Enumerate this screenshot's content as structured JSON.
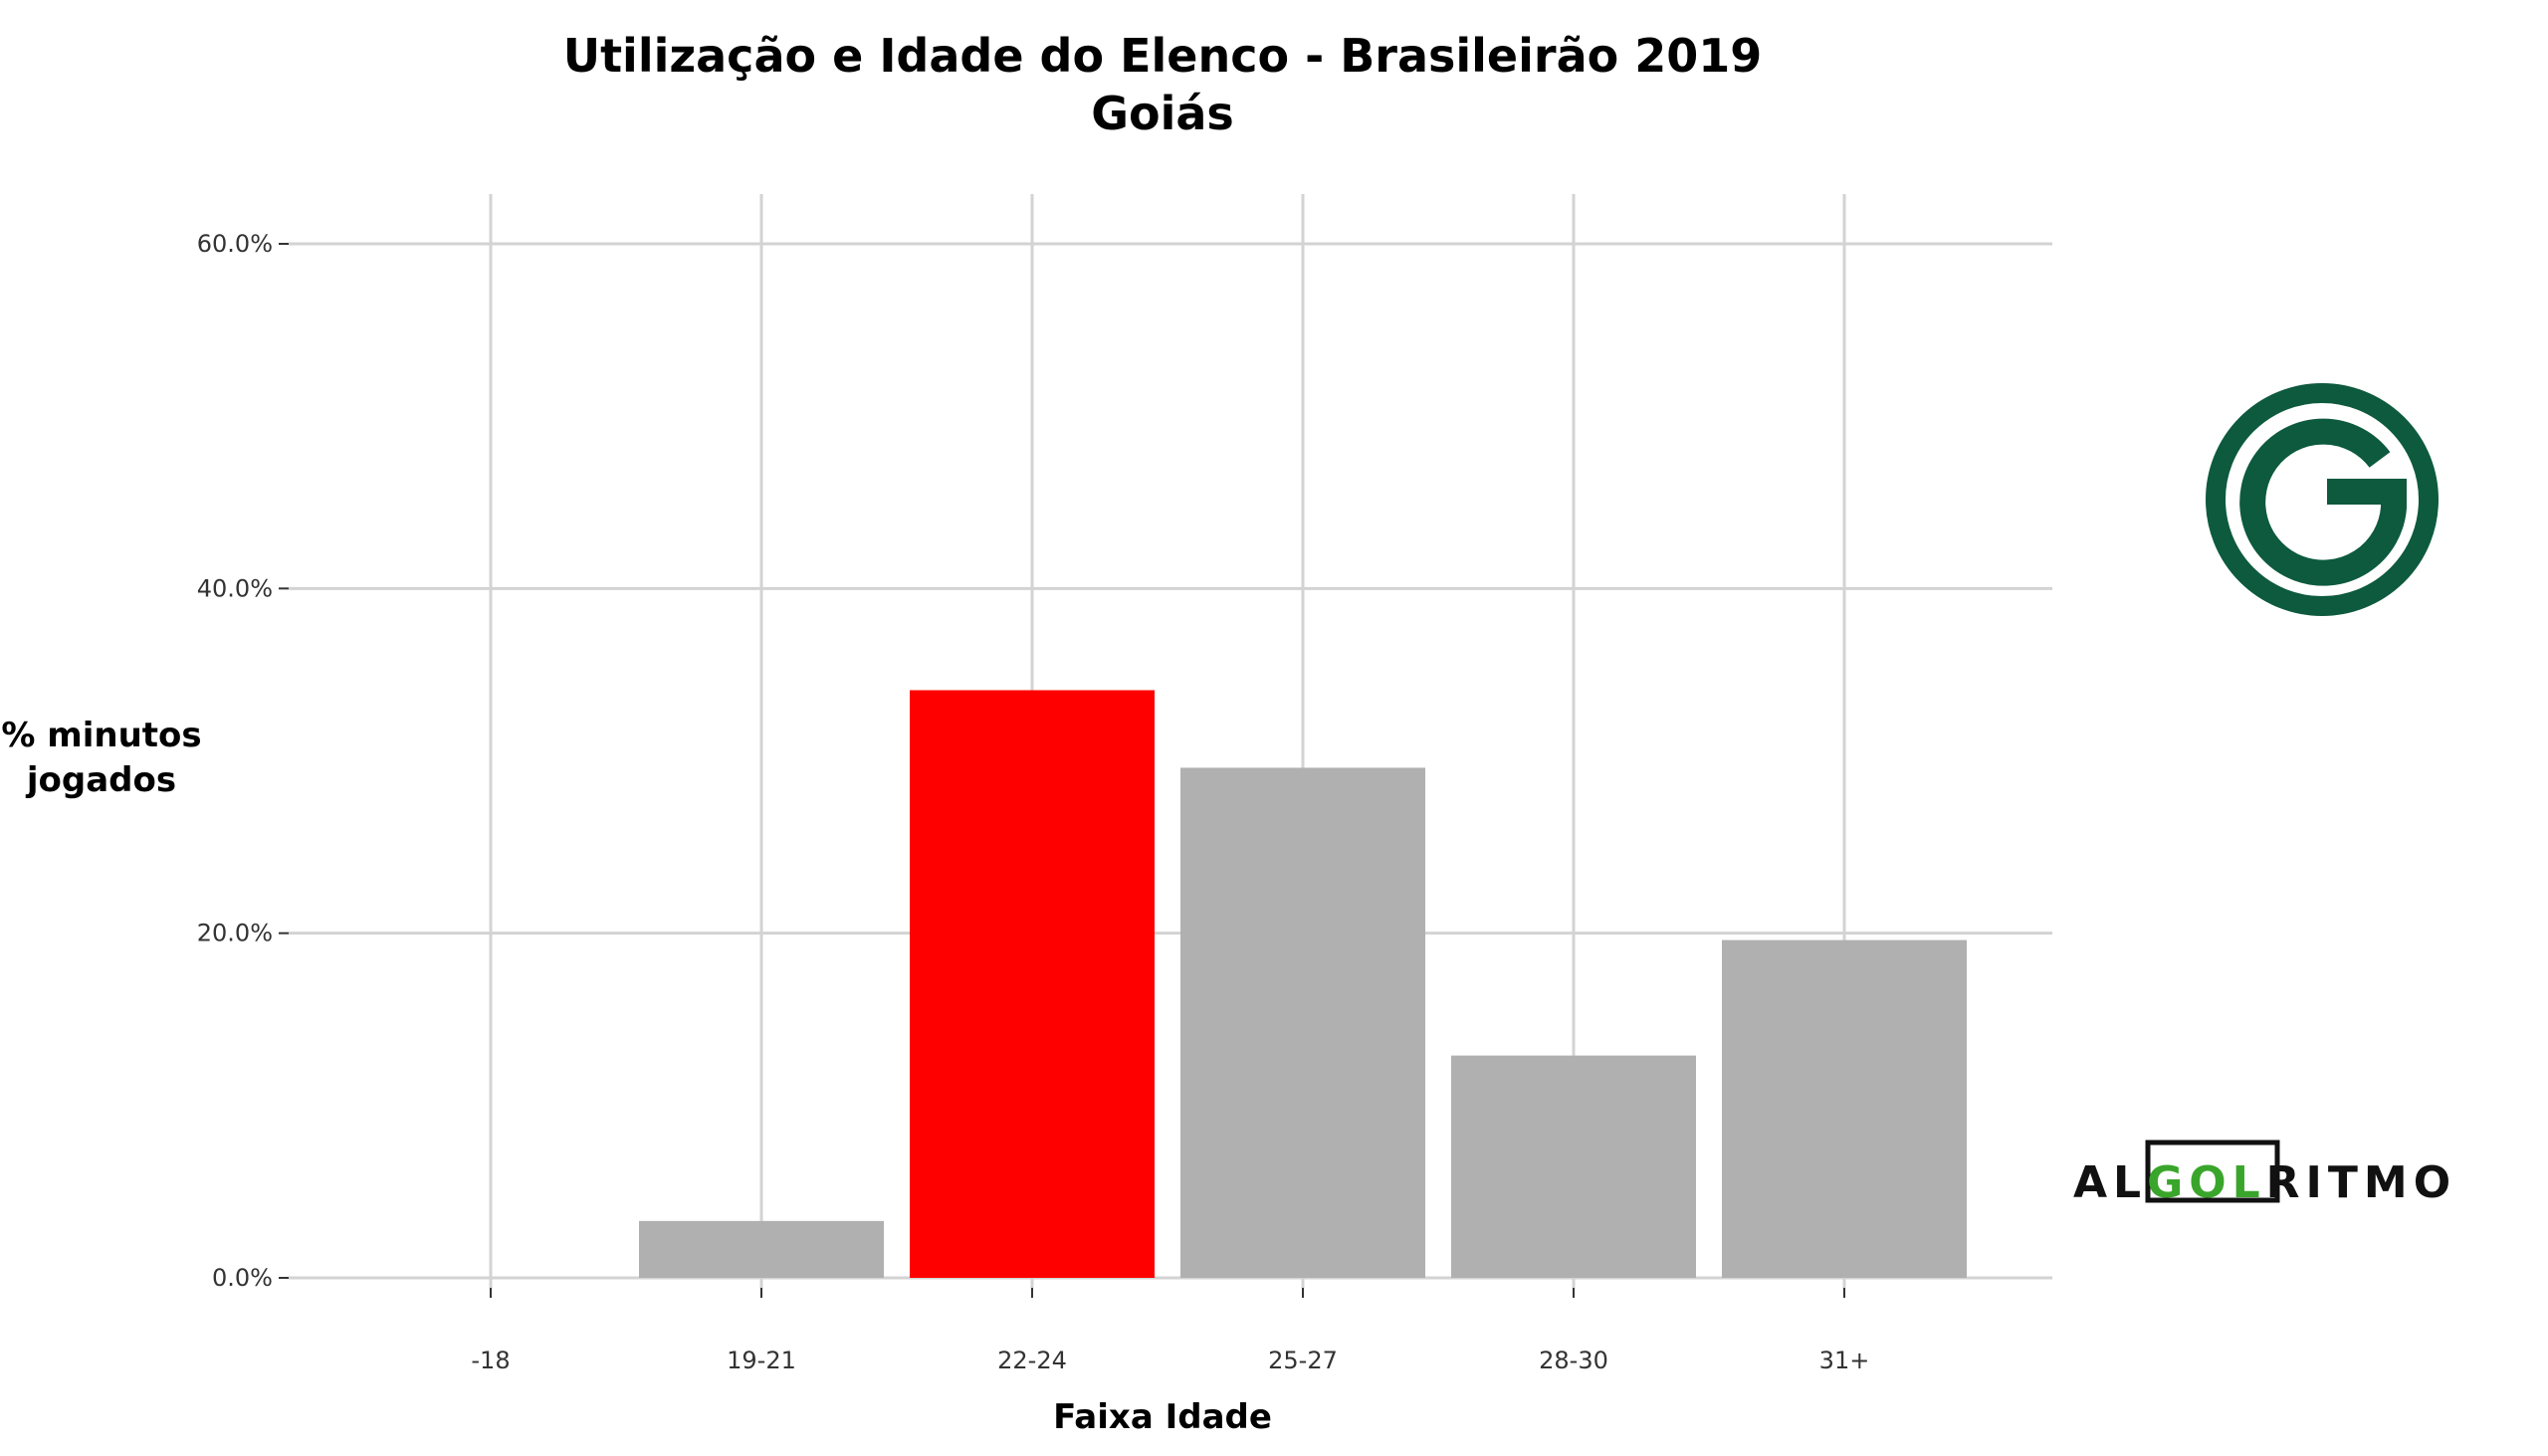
{
  "chart_data": {
    "type": "bar",
    "title": "Utilização e Idade do Elenco - Brasileirão 2019",
    "subtitle": "Goiás",
    "xlabel": "Faixa Idade",
    "ylabel_lines": [
      "% minutos",
      "jogados"
    ],
    "categories": [
      "-18",
      "19-21",
      "22-24",
      "25-27",
      "28-30",
      "31+"
    ],
    "values": [
      0.0,
      3.3,
      34.1,
      29.6,
      12.9,
      19.6
    ],
    "bar_colors": [
      "#b0b0b0",
      "#b0b0b0",
      "#ff0000",
      "#b0b0b0",
      "#b0b0b0",
      "#b0b0b0"
    ],
    "ylim": [
      0,
      63
    ],
    "y_ticks": [
      0,
      20,
      40,
      60
    ],
    "y_tick_labels": [
      "0.0%",
      "20.0%",
      "40.0%",
      "60.0%"
    ],
    "grid": true
  },
  "branding": {
    "club_logo": "goias-crest",
    "club_color": "#0d5a3e",
    "watermark_parts": [
      "AL",
      "GOL",
      "RITMO"
    ],
    "watermark_dark": "#111111",
    "watermark_green": "#3aa52b"
  }
}
